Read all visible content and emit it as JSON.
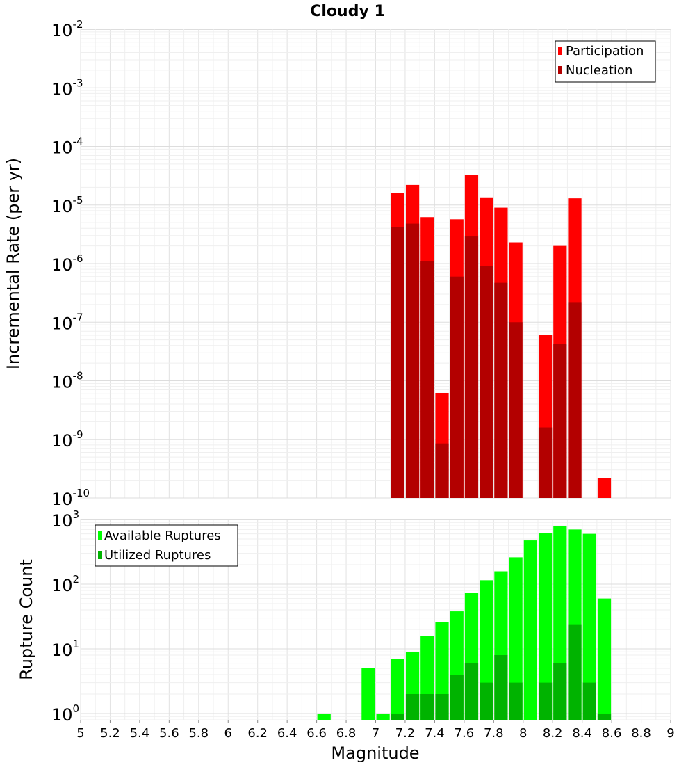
{
  "title": "Cloudy 1",
  "chart_data": [
    {
      "type": "bar",
      "scale": "log",
      "ylabel": "Incremental Rate (per yr)",
      "ylim": [
        1e-10,
        0.01
      ],
      "ytick_exponents": [
        "-2",
        "-3",
        "-4",
        "-5",
        "-6",
        "-7",
        "-8",
        "-9",
        "-10"
      ],
      "legend": {
        "position": "top-right",
        "entries": [
          "Participation",
          "Nucleation"
        ]
      },
      "colors": {
        "participation": "#ff0000",
        "nucleation": "#b30000"
      },
      "bin_width": 0.1,
      "series": [
        {
          "name": "Participation",
          "x": [
            7.15,
            7.25,
            7.35,
            7.45,
            7.55,
            7.65,
            7.75,
            7.85,
            7.95,
            8.15,
            8.25,
            8.35,
            8.55
          ],
          "values": [
            1.6e-05,
            2.2e-05,
            6.2e-06,
            6.2e-09,
            5.7e-06,
            3.3e-05,
            1.35e-05,
            9e-06,
            2.3e-06,
            6e-08,
            2e-06,
            1.3e-05,
            2.2e-10
          ]
        },
        {
          "name": "Nucleation",
          "x": [
            7.15,
            7.25,
            7.35,
            7.45,
            7.55,
            7.65,
            7.75,
            7.85,
            7.95,
            8.15,
            8.25,
            8.35
          ],
          "values": [
            4.2e-06,
            4.8e-06,
            1.1e-06,
            8.5e-10,
            6e-07,
            2.9e-06,
            9e-07,
            4.7e-07,
            1e-07,
            1.6e-09,
            4.2e-08,
            2.2e-07
          ]
        }
      ]
    },
    {
      "type": "bar",
      "scale": "log",
      "ylabel": "Rupture Count",
      "xlabel": "Magnitude",
      "ylim": [
        0.8,
        1000
      ],
      "ytick_exponents": [
        "3",
        "2",
        "1",
        "0"
      ],
      "xlim": [
        5,
        9
      ],
      "xticks": [
        "5",
        "5.2",
        "5.4",
        "5.6",
        "5.8",
        "6",
        "6.2",
        "6.4",
        "6.6",
        "6.8",
        "7",
        "7.2",
        "7.4",
        "7.6",
        "7.8",
        "8",
        "8.2",
        "8.4",
        "8.6",
        "8.8",
        "9"
      ],
      "legend": {
        "position": "top-left",
        "entries": [
          "Available Ruptures",
          "Utilized Ruptures"
        ]
      },
      "colors": {
        "available": "#00ff00",
        "utilized": "#00b300"
      },
      "bin_width": 0.1,
      "series": [
        {
          "name": "Available Ruptures",
          "x": [
            6.65,
            6.95,
            7.05,
            7.15,
            7.25,
            7.35,
            7.45,
            7.55,
            7.65,
            7.75,
            7.85,
            7.95,
            8.05,
            8.15,
            8.25,
            8.35,
            8.45,
            8.55
          ],
          "values": [
            1,
            5,
            1,
            7,
            9,
            16,
            26,
            38,
            73,
            115,
            158,
            260,
            475,
            610,
            790,
            700,
            600,
            60
          ]
        },
        {
          "name": "Utilized Ruptures",
          "x": [
            7.15,
            7.25,
            7.35,
            7.45,
            7.55,
            7.65,
            7.75,
            7.85,
            7.95,
            8.15,
            8.25,
            8.35,
            8.45,
            8.55
          ],
          "values": [
            1,
            2,
            2,
            2,
            4,
            6,
            3,
            8,
            3,
            3,
            6,
            24,
            3,
            1
          ]
        }
      ]
    }
  ]
}
